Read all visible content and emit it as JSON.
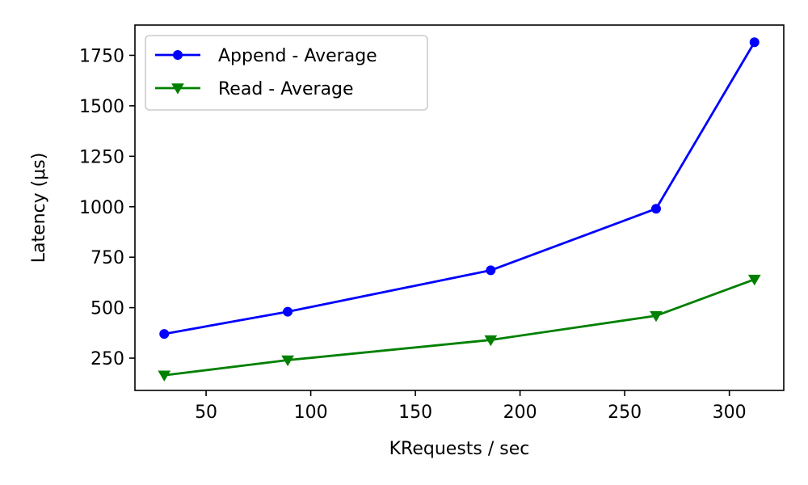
{
  "chart_data": {
    "type": "line",
    "title": "",
    "xlabel": "KRequests / sec",
    "ylabel": "Latency (μs)",
    "xlim": [
      16,
      326
    ],
    "ylim": [
      90,
      1900
    ],
    "x_ticks": [
      50,
      100,
      150,
      200,
      250,
      300
    ],
    "y_ticks": [
      250,
      500,
      750,
      1000,
      1250,
      1500,
      1750
    ],
    "grid": false,
    "legend_position": "top-left",
    "series": [
      {
        "name": "Append - Average",
        "color": "#0000ff",
        "marker": "circle",
        "x": [
          30,
          89,
          186,
          265,
          312
        ],
        "y": [
          370,
          480,
          685,
          990,
          1815
        ]
      },
      {
        "name": "Read - Average",
        "color": "#008000",
        "marker": "triangle-down",
        "x": [
          30,
          89,
          186,
          265,
          312
        ],
        "y": [
          165,
          240,
          340,
          460,
          640
        ]
      }
    ]
  }
}
